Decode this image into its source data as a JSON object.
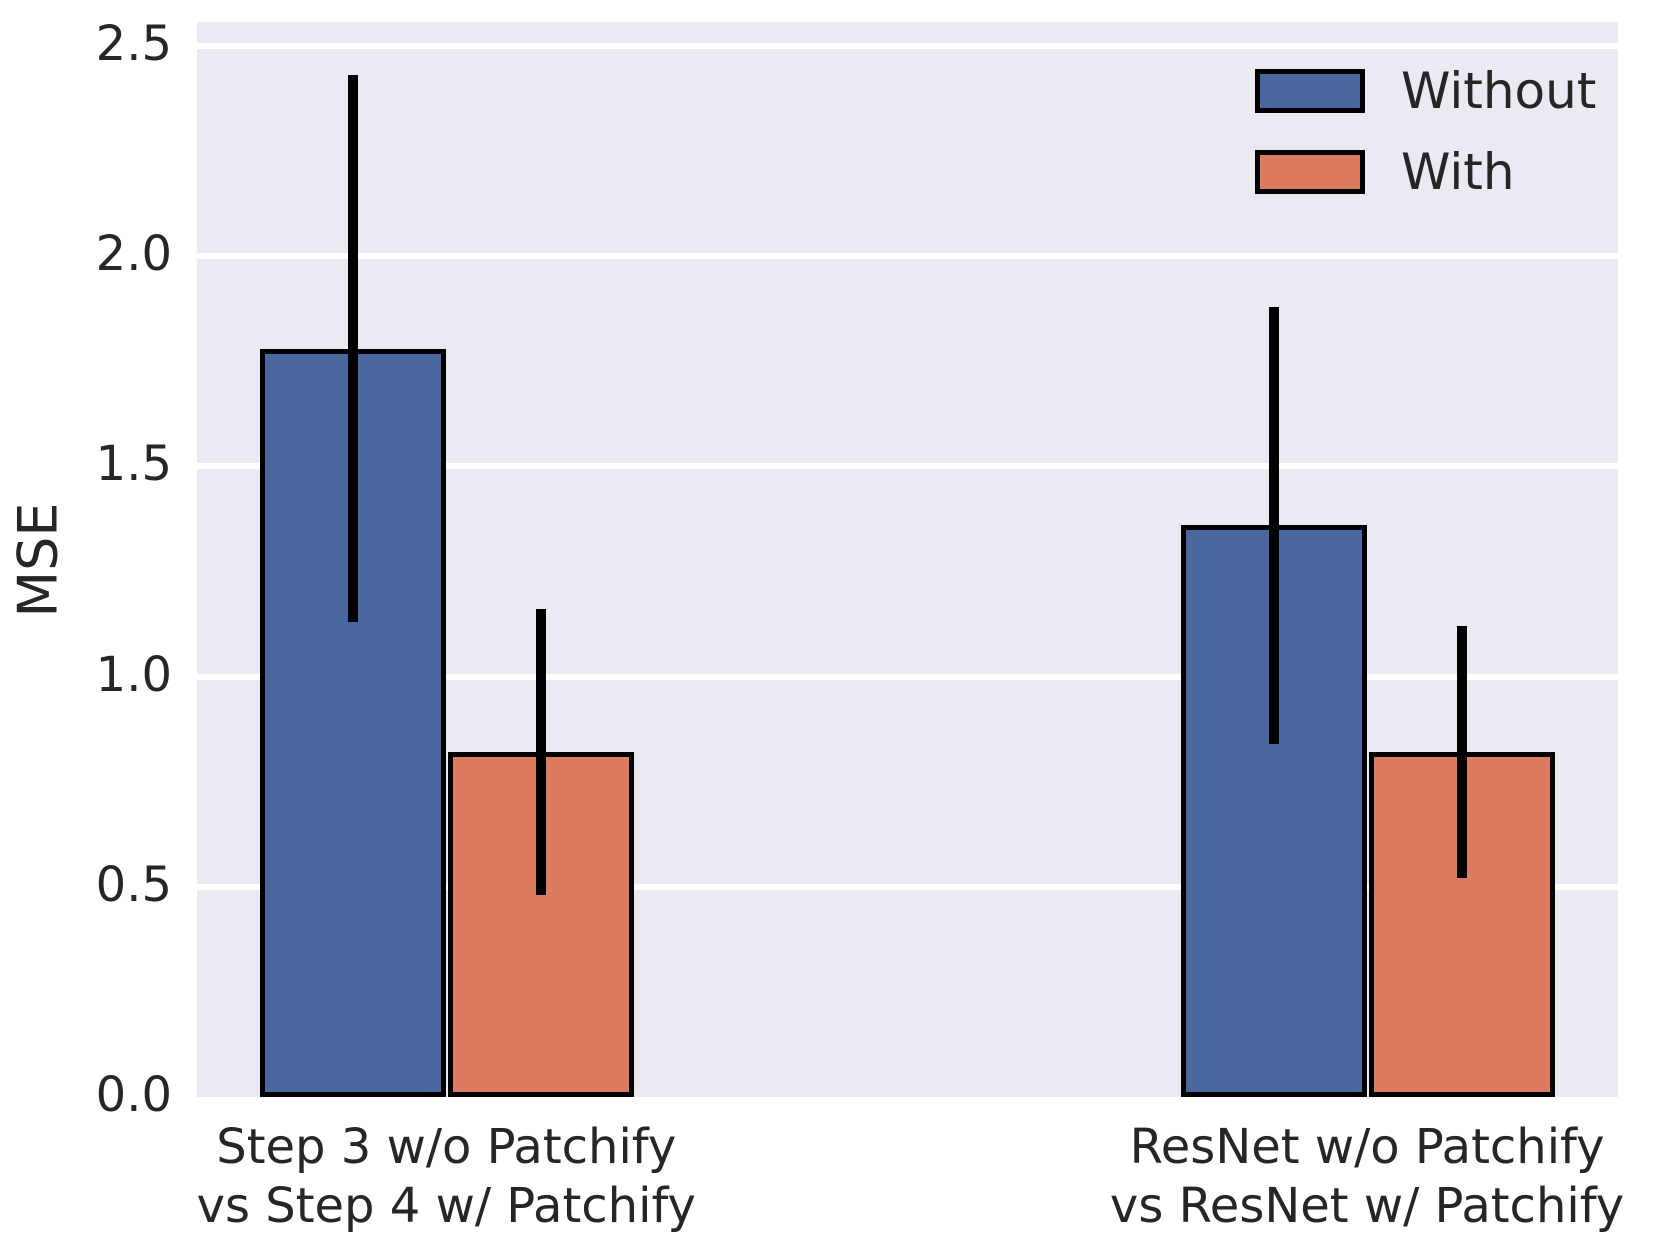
{
  "chart_data": {
    "type": "bar",
    "title": "",
    "xlabel": "",
    "ylabel": "MSE",
    "ylim": [
      0,
      2.56
    ],
    "yticks": [
      0.0,
      0.5,
      1.0,
      1.5,
      2.0,
      2.5
    ],
    "ytick_labels": [
      "0.0",
      "0.5",
      "1.0",
      "1.5",
      "2.0",
      "2.5"
    ],
    "grid": true,
    "legend_position": "upper right",
    "categories": [
      {
        "line1": "Step 3 w/o Patchify",
        "line2": "vs Step 4 w/ Patchify"
      },
      {
        "line1": "ResNet w/o Patchify",
        "line2": "vs ResNet w/ Patchify"
      }
    ],
    "series": [
      {
        "name": "Without",
        "color": "#4A68A0",
        "values": [
          1.78,
          1.36
        ],
        "errors": [
          0.65,
          0.52
        ]
      },
      {
        "name": "With",
        "color": "#DC7B60",
        "values": [
          0.82,
          0.82
        ],
        "errors": [
          0.34,
          0.3
        ]
      }
    ],
    "colors": {
      "plot_background": "#EAEAF2",
      "gridline": "#FFFFFF",
      "bar_edge": "#000000",
      "error_bar": "#000000",
      "text": "#262626"
    }
  }
}
